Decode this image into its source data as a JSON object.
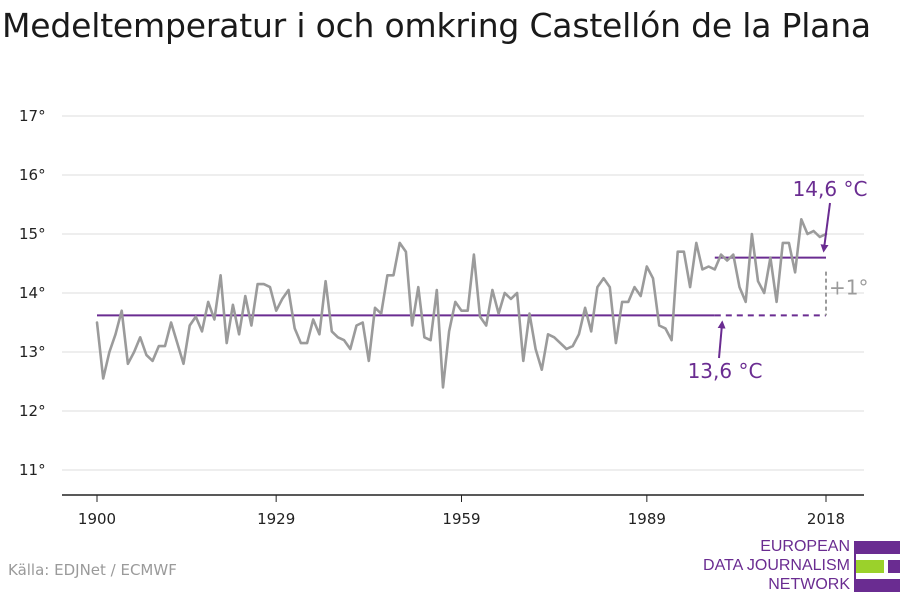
{
  "title": "Medeltemperatur i och omkring Castellón de la Plana",
  "source": "Källa: EDJNet / ECMWF",
  "logo": {
    "lines": [
      "EUROPEAN",
      "DATA JOURNALISM",
      "NETWORK"
    ],
    "colors": {
      "text": "#6a2c91",
      "bar_purple": "#6a2c91",
      "bar_green": "#9bd12b"
    }
  },
  "colors": {
    "series": "#9b9b9b",
    "baseline": "#6a2c91",
    "diff": "#9b9b9b",
    "grid": "#dddddd",
    "axis": "#222222"
  },
  "annotations": {
    "recent_avg": "14,6 °C",
    "historic_avg": "13,6 °C",
    "difference": "+1°"
  },
  "chart_data": {
    "type": "line",
    "title": "Medeltemperatur i och omkring Castellón de la Plana",
    "xlabel": "",
    "ylabel": "",
    "xlim": [
      1900,
      2018
    ],
    "ylim": [
      11,
      17
    ],
    "x_ticks": [
      1900,
      1929,
      1959,
      1989,
      2018
    ],
    "x_tick_labels": [
      "1900",
      "1929",
      "1959",
      "1989",
      "2018"
    ],
    "y_ticks": [
      11,
      12,
      13,
      14,
      15,
      16,
      17
    ],
    "y_tick_labels": [
      "11°",
      "12°",
      "13°",
      "14°",
      "15°",
      "16°",
      "17°"
    ],
    "grid": true,
    "series": [
      {
        "x_start": 1900,
        "values": [
          13.5,
          12.55,
          13.0,
          13.3,
          13.7,
          12.8,
          13.0,
          13.25,
          12.95,
          12.85,
          13.1,
          13.1,
          13.5,
          13.15,
          12.8,
          13.45,
          13.6,
          13.35,
          13.85,
          13.55,
          14.3,
          13.15,
          13.8,
          13.3,
          13.95,
          13.45,
          14.15,
          14.15,
          14.1,
          13.7,
          13.9,
          14.05,
          13.4,
          13.15,
          13.15,
          13.55,
          13.3,
          14.2,
          13.35,
          13.25,
          13.2,
          13.05,
          13.45,
          13.5,
          12.85,
          13.75,
          13.65,
          14.3,
          14.3,
          14.85,
          14.7,
          13.45,
          14.1,
          13.25,
          13.2,
          14.05,
          12.4,
          13.35,
          13.85,
          13.7,
          13.7,
          14.65,
          13.6,
          13.45,
          14.05,
          13.65,
          14.0,
          13.9,
          14.0,
          12.85,
          13.65,
          13.05,
          12.7,
          13.3,
          13.25,
          13.15,
          13.05,
          13.1,
          13.3,
          13.75,
          13.35,
          14.1,
          14.25,
          14.1,
          13.15,
          13.85,
          13.85,
          14.1,
          13.95,
          14.45,
          14.25,
          13.45,
          13.4,
          13.2,
          14.7,
          14.7,
          14.1,
          14.85,
          14.4,
          14.45,
          14.4,
          14.65,
          14.55,
          14.65,
          14.1,
          13.85,
          15.0,
          14.2,
          14.0,
          14.6,
          13.85,
          14.85,
          14.85,
          14.35,
          15.25,
          15.0,
          15.05,
          14.95,
          15.0
        ]
      }
    ],
    "reference_lines": [
      {
        "label": "13,6 °C",
        "value": 13.62,
        "x_from": 1900,
        "x_to": 2000,
        "style": "solid"
      },
      {
        "label": "",
        "value": 13.62,
        "x_from": 2000,
        "x_to": 2018,
        "style": "dashed"
      },
      {
        "label": "14,6 °C",
        "value": 14.6,
        "x_from": 2000,
        "x_to": 2018,
        "style": "solid"
      }
    ],
    "difference": {
      "label": "+1°",
      "x": 2018,
      "from": 13.62,
      "to": 14.6
    }
  }
}
